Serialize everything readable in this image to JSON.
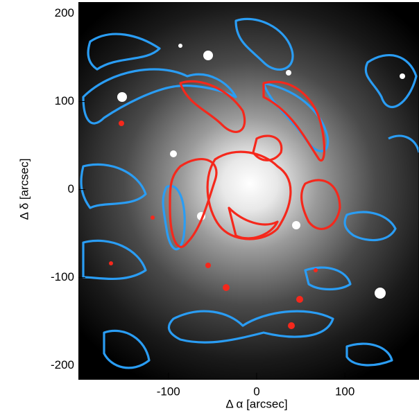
{
  "chart_data": {
    "type": "image",
    "x_label": "Δ α   [arcsec]",
    "y_label": "Δ δ   [arcsec]",
    "xlim": [
      -202,
      184
    ],
    "ylim": [
      -216,
      213
    ],
    "xticks": [
      -100,
      0,
      100
    ],
    "yticks": [
      -200,
      -100,
      0,
      100,
      200
    ],
    "contour_colors": [
      "#2a9df4",
      "#f5281c"
    ]
  }
}
